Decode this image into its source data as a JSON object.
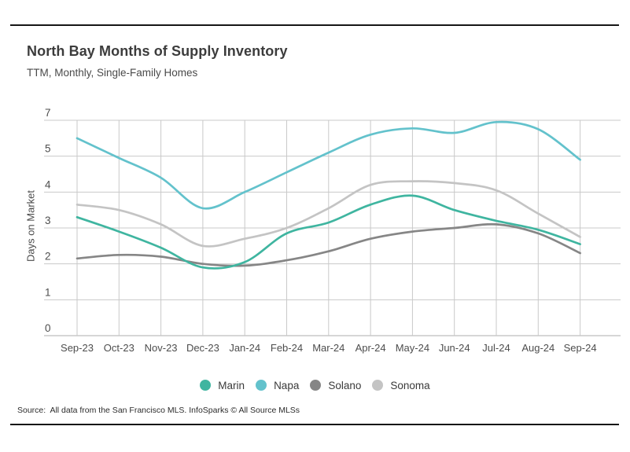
{
  "header": {
    "title": "North Bay Months of Supply Inventory",
    "subtitle": "TTM, Monthly, Single-Family Homes"
  },
  "footer": {
    "source": "Source:  All data from the San Francisco MLS. InfoSparks © All Source MLSs"
  },
  "chart_data": {
    "type": "line",
    "title": "North Bay Months of Supply Inventory",
    "subtitle": "TTM, Monthly, Single-Family Homes",
    "ylabel": "Days on Market",
    "xlabel": "",
    "categories": [
      "Sep-23",
      "Oct-23",
      "Nov-23",
      "Dec-23",
      "Jan-24",
      "Feb-24",
      "Mar-24",
      "Apr-24",
      "May-24",
      "Jun-24",
      "Jul-24",
      "Aug-24",
      "Sep-24"
    ],
    "y_tick_labels": [
      "7",
      "5",
      "4",
      "3",
      "2",
      "1",
      "0"
    ],
    "ylim": [
      0,
      7
    ],
    "grid": true,
    "legend_position": "bottom",
    "series": [
      {
        "name": "Marin",
        "color": "#3fb5a0",
        "values": [
          3.3,
          2.9,
          2.45,
          1.9,
          2.05,
          2.85,
          3.15,
          3.65,
          3.9,
          3.5,
          3.2,
          2.95,
          2.55
        ]
      },
      {
        "name": "Napa",
        "color": "#63c2cc",
        "values": [
          6.0,
          4.95,
          4.4,
          3.55,
          4.0,
          4.55,
          5.2,
          6.2,
          6.55,
          6.3,
          6.9,
          6.5,
          4.9
        ]
      },
      {
        "name": "Solano",
        "color": "#868686",
        "values": [
          2.15,
          2.25,
          2.2,
          2.0,
          1.95,
          2.1,
          2.35,
          2.7,
          2.9,
          3.0,
          3.1,
          2.85,
          2.3
        ]
      },
      {
        "name": "Sonoma",
        "color": "#c4c4c4",
        "values": [
          3.65,
          3.5,
          3.1,
          2.5,
          2.7,
          3.0,
          3.55,
          4.2,
          4.3,
          4.25,
          4.05,
          3.4,
          2.75
        ]
      }
    ]
  }
}
